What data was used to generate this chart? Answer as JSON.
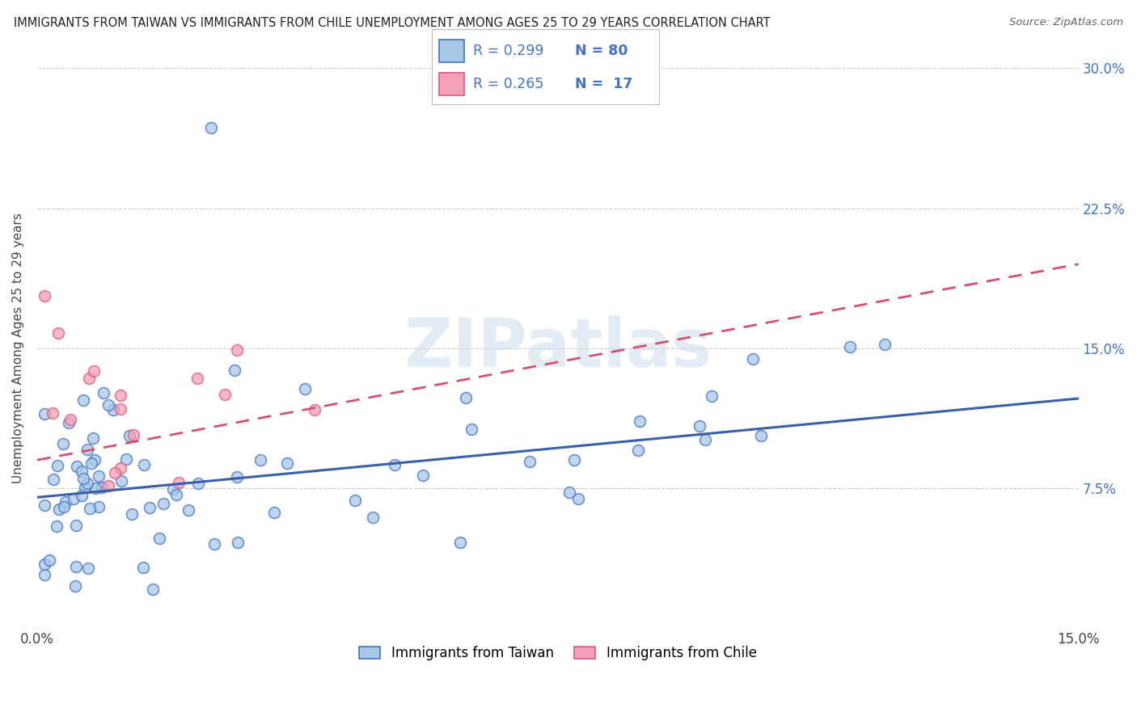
{
  "title": "IMMIGRANTS FROM TAIWAN VS IMMIGRANTS FROM CHILE UNEMPLOYMENT AMONG AGES 25 TO 29 YEARS CORRELATION CHART",
  "source": "Source: ZipAtlas.com",
  "ylabel": "Unemployment Among Ages 25 to 29 years",
  "xlim": [
    0.0,
    0.15
  ],
  "ylim": [
    0.0,
    0.3
  ],
  "xticks": [
    0.0,
    0.15
  ],
  "xticklabels": [
    "0.0%",
    "15.0%"
  ],
  "yticks": [
    0.075,
    0.15,
    0.225,
    0.3
  ],
  "yticklabels": [
    "7.5%",
    "15.0%",
    "22.5%",
    "30.0%"
  ],
  "taiwan_color": "#a8c8e8",
  "chile_color": "#f4a0b8",
  "taiwan_edge_color": "#4472c4",
  "chile_edge_color": "#e05878",
  "taiwan_line_color": "#3a5faa",
  "chile_line_color": "#d45070",
  "taiwan_R": 0.299,
  "taiwan_N": 80,
  "chile_R": 0.265,
  "chile_N": 17,
  "legend_label_taiwan": "Immigrants from Taiwan",
  "legend_label_chile": "Immigrants from Chile",
  "watermark": "ZIPatlas",
  "background_color": "#ffffff",
  "taiwan_line_x0": 0.0,
  "taiwan_line_y0": 0.07,
  "taiwan_line_x1": 0.15,
  "taiwan_line_y1": 0.123,
  "chile_line_x0": 0.0,
  "chile_line_y0": 0.09,
  "chile_line_x1": 0.15,
  "chile_line_y1": 0.195,
  "grid_color": "#cccccc",
  "tick_label_color": "#4472c4"
}
